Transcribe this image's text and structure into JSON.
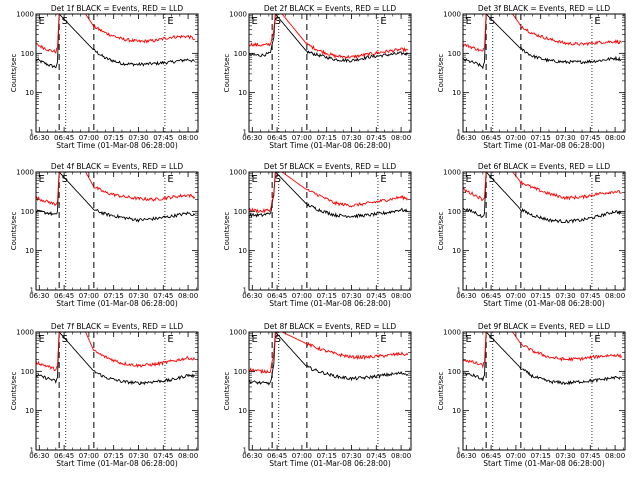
{
  "figure": {
    "x_axis_label": "Start Time (01-Mar-08 06:28:00)",
    "y_axis_label": "Counts/sec",
    "x_tick_labels": [
      "06:30",
      "06:45",
      "07:00",
      "07:15",
      "07:30",
      "07:45",
      "08:00"
    ],
    "y_tick_labels": [
      "1",
      "10",
      "100",
      "1000"
    ],
    "series_colors": {
      "events": "#000000",
      "lld": "#ff0000"
    },
    "vertical_line_times": {
      "dashed": [
        "06:42",
        "07:03"
      ],
      "dotted": [
        "06:46",
        "07:46"
      ]
    },
    "interval_markers": [
      "E",
      "S",
      "E"
    ]
  },
  "chart_data": [
    {
      "type": "line",
      "title": "Det 1f BLACK = Events, RED = LLD",
      "xlim": [
        "06:28",
        "08:06"
      ],
      "ylim": [
        1,
        1000
      ],
      "yscale": "log",
      "series": [
        {
          "name": "Events",
          "color": "#000000",
          "x": [
            "06:28",
            "06:36",
            "06:40",
            "06:41",
            "06:42",
            "07:03",
            "07:10",
            "07:20",
            "07:30",
            "07:40",
            "07:50",
            "08:00",
            "08:04"
          ],
          "values": [
            70,
            50,
            45,
            60,
            1000,
            120,
            75,
            55,
            52,
            55,
            60,
            70,
            62
          ]
        },
        {
          "name": "LLD",
          "color": "#ff0000",
          "x": [
            "06:28",
            "06:36",
            "06:40",
            "06:41",
            "06:42",
            "06:58",
            "07:03",
            "07:10",
            "07:20",
            "07:30",
            "07:40",
            "07:50",
            "08:00",
            "08:04"
          ],
          "values": [
            170,
            120,
            110,
            140,
            1000,
            1000,
            480,
            330,
            230,
            200,
            210,
            260,
            270,
            230
          ]
        }
      ]
    },
    {
      "type": "line",
      "title": "Det 2f BLACK = Events, RED = LLD",
      "xlim": [
        "06:28",
        "08:06"
      ],
      "ylim": [
        1,
        1000
      ],
      "yscale": "log",
      "series": [
        {
          "name": "Events",
          "color": "#000000",
          "x": [
            "06:28",
            "06:36",
            "06:41",
            "06:43",
            "06:44",
            "07:03",
            "07:10",
            "07:20",
            "07:30",
            "07:40",
            "07:50",
            "08:00",
            "08:04"
          ],
          "values": [
            90,
            90,
            100,
            250,
            1000,
            110,
            90,
            70,
            65,
            80,
            90,
            100,
            95
          ]
        },
        {
          "name": "LLD",
          "color": "#ff0000",
          "x": [
            "06:28",
            "06:36",
            "06:41",
            "06:43",
            "06:44",
            "06:48",
            "07:03",
            "07:10",
            "07:20",
            "07:30",
            "07:40",
            "07:50",
            "08:00",
            "08:04"
          ],
          "values": [
            170,
            160,
            170,
            400,
            1000,
            1000,
            170,
            120,
            85,
            80,
            95,
            110,
            125,
            120
          ]
        }
      ]
    },
    {
      "type": "line",
      "title": "Det 3f BLACK = Events, RED = LLD",
      "xlim": [
        "06:28",
        "08:06"
      ],
      "ylim": [
        1,
        1000
      ],
      "yscale": "log",
      "series": [
        {
          "name": "Events",
          "color": "#000000",
          "x": [
            "06:28",
            "06:36",
            "06:40",
            "06:41",
            "06:42",
            "07:03",
            "07:10",
            "07:20",
            "07:30",
            "07:40",
            "07:50",
            "08:00",
            "08:04"
          ],
          "values": [
            70,
            55,
            45,
            60,
            1000,
            130,
            85,
            65,
            60,
            60,
            65,
            75,
            70
          ]
        },
        {
          "name": "LLD",
          "color": "#ff0000",
          "x": [
            "06:28",
            "06:36",
            "06:40",
            "06:41",
            "06:42",
            "06:58",
            "07:03",
            "07:10",
            "07:20",
            "07:30",
            "07:40",
            "07:50",
            "08:00",
            "08:04"
          ],
          "values": [
            170,
            130,
            110,
            140,
            1000,
            1000,
            500,
            320,
            230,
            180,
            170,
            190,
            200,
            190
          ]
        }
      ]
    },
    {
      "type": "line",
      "title": "Det 4f BLACK = Events, RED = LLD",
      "xlim": [
        "06:28",
        "08:06"
      ],
      "ylim": [
        1,
        1000
      ],
      "yscale": "log",
      "series": [
        {
          "name": "Events",
          "color": "#000000",
          "x": [
            "06:28",
            "06:36",
            "06:40",
            "06:41",
            "06:42",
            "07:03",
            "07:10",
            "07:20",
            "07:30",
            "07:40",
            "07:50",
            "08:00",
            "08:04"
          ],
          "values": [
            100,
            90,
            80,
            100,
            1000,
            110,
            85,
            70,
            60,
            65,
            75,
            90,
            80
          ]
        },
        {
          "name": "LLD",
          "color": "#ff0000",
          "x": [
            "06:28",
            "06:36",
            "06:40",
            "06:41",
            "06:42",
            "06:58",
            "07:03",
            "07:10",
            "07:20",
            "07:30",
            "07:40",
            "07:50",
            "08:00",
            "08:04"
          ],
          "values": [
            220,
            170,
            150,
            180,
            1000,
            1000,
            420,
            300,
            240,
            210,
            200,
            230,
            260,
            230
          ]
        }
      ]
    },
    {
      "type": "line",
      "title": "Det 5f BLACK = Events, RED = LLD",
      "xlim": [
        "06:28",
        "08:06"
      ],
      "ylim": [
        1,
        1000
      ],
      "yscale": "log",
      "series": [
        {
          "name": "Events",
          "color": "#000000",
          "x": [
            "06:28",
            "06:36",
            "06:41",
            "06:43",
            "06:44",
            "07:03",
            "07:10",
            "07:20",
            "07:30",
            "07:40",
            "07:50",
            "08:00",
            "08:04"
          ],
          "values": [
            80,
            80,
            90,
            250,
            1000,
            150,
            110,
            80,
            75,
            80,
            90,
            110,
            100
          ]
        },
        {
          "name": "LLD",
          "color": "#ff0000",
          "x": [
            "06:28",
            "06:36",
            "06:41",
            "06:43",
            "06:44",
            "06:48",
            "07:03",
            "07:10",
            "07:20",
            "07:30",
            "07:40",
            "07:50",
            "08:00",
            "08:04"
          ],
          "values": [
            110,
            100,
            110,
            300,
            1000,
            1000,
            350,
            260,
            160,
            140,
            160,
            190,
            230,
            210
          ]
        }
      ]
    },
    {
      "type": "line",
      "title": "Det 6f BLACK = Events, RED = LLD",
      "xlim": [
        "06:28",
        "08:06"
      ],
      "ylim": [
        1,
        1000
      ],
      "yscale": "log",
      "series": [
        {
          "name": "Events",
          "color": "#000000",
          "x": [
            "06:28",
            "06:36",
            "06:40",
            "06:41",
            "06:42",
            "07:03",
            "07:10",
            "07:20",
            "07:30",
            "07:40",
            "07:50",
            "08:00",
            "08:04"
          ],
          "values": [
            120,
            90,
            70,
            90,
            1000,
            110,
            80,
            60,
            55,
            60,
            75,
            100,
            90
          ]
        },
        {
          "name": "LLD",
          "color": "#ff0000",
          "x": [
            "06:28",
            "06:36",
            "06:40",
            "06:41",
            "06:42",
            "06:58",
            "07:03",
            "07:10",
            "07:20",
            "07:30",
            "07:40",
            "07:50",
            "08:00",
            "08:04"
          ],
          "values": [
            360,
            250,
            200,
            230,
            1000,
            1000,
            550,
            400,
            280,
            220,
            230,
            280,
            320,
            300
          ]
        }
      ]
    },
    {
      "type": "line",
      "title": "Det 7f BLACK = Events, RED = LLD",
      "xlim": [
        "06:28",
        "08:06"
      ],
      "ylim": [
        1,
        1000
      ],
      "yscale": "log",
      "series": [
        {
          "name": "Events",
          "color": "#000000",
          "x": [
            "06:28",
            "06:36",
            "06:40",
            "06:41",
            "06:42",
            "07:03",
            "07:10",
            "07:20",
            "07:30",
            "07:40",
            "07:50",
            "08:00",
            "08:04"
          ],
          "values": [
            80,
            65,
            55,
            70,
            1000,
            100,
            70,
            55,
            50,
            55,
            60,
            80,
            75
          ]
        },
        {
          "name": "LLD",
          "color": "#ff0000",
          "x": [
            "06:28",
            "06:36",
            "06:40",
            "06:41",
            "06:42",
            "06:58",
            "07:03",
            "07:10",
            "07:20",
            "07:30",
            "07:40",
            "07:50",
            "08:00",
            "08:04"
          ],
          "values": [
            170,
            130,
            110,
            140,
            1000,
            1000,
            330,
            230,
            160,
            140,
            150,
            180,
            220,
            200
          ]
        }
      ]
    },
    {
      "type": "line",
      "title": "Det 8f BLACK = Events, RED = LLD",
      "xlim": [
        "06:28",
        "08:06"
      ],
      "ylim": [
        1,
        1000
      ],
      "yscale": "log",
      "series": [
        {
          "name": "Events",
          "color": "#000000",
          "x": [
            "06:28",
            "06:36",
            "06:41",
            "06:43",
            "06:44",
            "07:03",
            "07:10",
            "07:20",
            "07:30",
            "07:40",
            "07:50",
            "08:00",
            "08:04"
          ],
          "values": [
            55,
            50,
            50,
            150,
            1000,
            130,
            100,
            75,
            65,
            70,
            80,
            90,
            85
          ]
        },
        {
          "name": "LLD",
          "color": "#ff0000",
          "x": [
            "06:28",
            "06:36",
            "06:41",
            "06:43",
            "06:44",
            "06:48",
            "07:03",
            "07:10",
            "07:20",
            "07:30",
            "07:40",
            "07:50",
            "08:00",
            "08:04"
          ],
          "values": [
            110,
            100,
            100,
            300,
            1000,
            1000,
            500,
            380,
            280,
            230,
            230,
            250,
            280,
            260
          ]
        }
      ]
    },
    {
      "type": "line",
      "title": "Det 9f BLACK = Events, RED = LLD",
      "xlim": [
        "06:28",
        "08:06"
      ],
      "ylim": [
        1,
        1000
      ],
      "yscale": "log",
      "series": [
        {
          "name": "Events",
          "color": "#000000",
          "x": [
            "06:28",
            "06:36",
            "06:40",
            "06:41",
            "06:42",
            "07:03",
            "07:10",
            "07:20",
            "07:30",
            "07:40",
            "07:50",
            "08:00",
            "08:04"
          ],
          "values": [
            90,
            75,
            60,
            80,
            1000,
            120,
            75,
            55,
            50,
            55,
            60,
            70,
            65
          ]
        },
        {
          "name": "LLD",
          "color": "#ff0000",
          "x": [
            "06:28",
            "06:36",
            "06:40",
            "06:41",
            "06:42",
            "06:58",
            "07:03",
            "07:10",
            "07:20",
            "07:30",
            "07:40",
            "07:50",
            "08:00",
            "08:04"
          ],
          "values": [
            200,
            160,
            140,
            170,
            1000,
            1000,
            500,
            330,
            230,
            200,
            210,
            240,
            260,
            240
          ]
        }
      ]
    }
  ]
}
